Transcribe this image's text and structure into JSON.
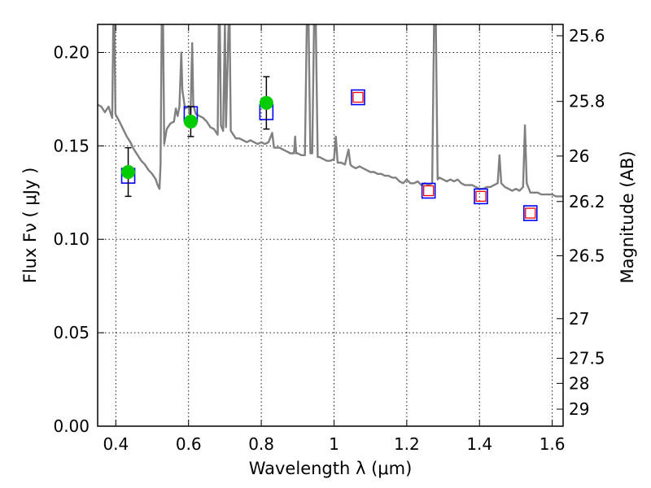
{
  "chart_data": {
    "type": "scatter",
    "xlabel": "Wavelength  λ (μm)",
    "ylabel_left": "Flux  F_ν  ( μJy )",
    "ylabel_right": "Magnitude (AB)",
    "xlim": [
      0.35,
      1.63
    ],
    "ylim": [
      0.0,
      0.215
    ],
    "grid": true,
    "x_ticks": [
      {
        "value": 0.4,
        "label": "0.4"
      },
      {
        "value": 0.6,
        "label": "0.6"
      },
      {
        "value": 0.8,
        "label": "0.8"
      },
      {
        "value": 1.0,
        "label": "1"
      },
      {
        "value": 1.2,
        "label": "1.2"
      },
      {
        "value": 1.4,
        "label": "1.4"
      },
      {
        "value": 1.6,
        "label": "1.6"
      }
    ],
    "y_ticks": [
      {
        "value": 0.0,
        "label": "0.00"
      },
      {
        "value": 0.05,
        "label": "0.05"
      },
      {
        "value": 0.1,
        "label": "0.10"
      },
      {
        "value": 0.15,
        "label": "0.15"
      },
      {
        "value": 0.2,
        "label": "0.20"
      }
    ],
    "right_ticks": [
      {
        "value": 25.6,
        "label": "25.6"
      },
      {
        "value": 25.8,
        "label": "25.8"
      },
      {
        "value": 26.0,
        "label": "26"
      },
      {
        "value": 26.2,
        "label": "26.2"
      },
      {
        "value": 26.5,
        "label": "26.5"
      },
      {
        "value": 27.0,
        "label": "27"
      },
      {
        "value": 27.5,
        "label": "27.5"
      },
      {
        "value": 28.0,
        "label": "28"
      },
      {
        "value": 29.0,
        "label": "29"
      }
    ],
    "series": [
      {
        "kind": "observed",
        "color": "#00cc00",
        "points": [
          {
            "x": 0.434,
            "y": 0.136,
            "yerr": 0.013
          },
          {
            "x": 0.606,
            "y": 0.163,
            "yerr": 0.008
          },
          {
            "x": 0.814,
            "y": 0.173,
            "yerr": 0.014
          }
        ]
      },
      {
        "kind": "model-filter",
        "color": "#0000ff",
        "points": [
          {
            "x": 0.434,
            "y": 0.134
          },
          {
            "x": 0.606,
            "y": 0.167
          },
          {
            "x": 0.814,
            "y": 0.168
          },
          {
            "x": 1.066,
            "y": 0.176
          },
          {
            "x": 1.26,
            "y": 0.126
          },
          {
            "x": 1.404,
            "y": 0.123
          },
          {
            "x": 1.54,
            "y": 0.114
          }
        ]
      },
      {
        "kind": "predicted",
        "color": "#ff0000",
        "points": [
          {
            "x": 1.066,
            "y": 0.176
          },
          {
            "x": 1.26,
            "y": 0.126
          },
          {
            "x": 1.404,
            "y": 0.123
          },
          {
            "x": 1.54,
            "y": 0.114
          }
        ]
      },
      {
        "kind": "template-spectrum",
        "color": "#808080",
        "points": [
          [
            0.35,
            0.172
          ],
          [
            0.36,
            0.171
          ],
          [
            0.37,
            0.168
          ],
          [
            0.38,
            0.171
          ],
          [
            0.385,
            0.168
          ],
          [
            0.39,
            0.165
          ],
          [
            0.393,
            0.215
          ],
          [
            0.396,
            0.215
          ],
          [
            0.399,
            0.167
          ],
          [
            0.41,
            0.163
          ],
          [
            0.42,
            0.159
          ],
          [
            0.43,
            0.155
          ],
          [
            0.44,
            0.152
          ],
          [
            0.45,
            0.148
          ],
          [
            0.46,
            0.145
          ],
          [
            0.47,
            0.142
          ],
          [
            0.48,
            0.14
          ],
          [
            0.49,
            0.137
          ],
          [
            0.5,
            0.135
          ],
          [
            0.51,
            0.132
          ],
          [
            0.515,
            0.129
          ],
          [
            0.52,
            0.127
          ],
          [
            0.523,
            0.14
          ],
          [
            0.526,
            0.215
          ],
          [
            0.53,
            0.215
          ],
          [
            0.533,
            0.151
          ],
          [
            0.54,
            0.159
          ],
          [
            0.55,
            0.162
          ],
          [
            0.56,
            0.163
          ],
          [
            0.565,
            0.17
          ],
          [
            0.57,
            0.166
          ],
          [
            0.575,
            0.171
          ],
          [
            0.58,
            0.2
          ],
          [
            0.583,
            0.18
          ],
          [
            0.59,
            0.17
          ],
          [
            0.6,
            0.171
          ],
          [
            0.605,
            0.165
          ],
          [
            0.61,
            0.205
          ],
          [
            0.613,
            0.172
          ],
          [
            0.62,
            0.167
          ],
          [
            0.63,
            0.166
          ],
          [
            0.64,
            0.165
          ],
          [
            0.65,
            0.163
          ],
          [
            0.66,
            0.16
          ],
          [
            0.67,
            0.159
          ],
          [
            0.68,
            0.156
          ],
          [
            0.683,
            0.215
          ],
          [
            0.686,
            0.215
          ],
          [
            0.689,
            0.161
          ],
          [
            0.695,
            0.158
          ],
          [
            0.7,
            0.215
          ],
          [
            0.703,
            0.16
          ],
          [
            0.71,
            0.215
          ],
          [
            0.713,
            0.215
          ],
          [
            0.716,
            0.158
          ],
          [
            0.72,
            0.157
          ],
          [
            0.73,
            0.154
          ],
          [
            0.74,
            0.154
          ],
          [
            0.75,
            0.153
          ],
          [
            0.76,
            0.152
          ],
          [
            0.77,
            0.153
          ],
          [
            0.78,
            0.152
          ],
          [
            0.79,
            0.151
          ],
          [
            0.8,
            0.152
          ],
          [
            0.81,
            0.151
          ],
          [
            0.82,
            0.152
          ],
          [
            0.83,
            0.157
          ],
          [
            0.835,
            0.149
          ],
          [
            0.84,
            0.149
          ],
          [
            0.85,
            0.149
          ],
          [
            0.86,
            0.148
          ],
          [
            0.87,
            0.147
          ],
          [
            0.88,
            0.146
          ],
          [
            0.89,
            0.146
          ],
          [
            0.893,
            0.155
          ],
          [
            0.896,
            0.146
          ],
          [
            0.9,
            0.146
          ],
          [
            0.91,
            0.145
          ],
          [
            0.92,
            0.145
          ],
          [
            0.925,
            0.215
          ],
          [
            0.93,
            0.215
          ],
          [
            0.935,
            0.146
          ],
          [
            0.94,
            0.146
          ],
          [
            0.945,
            0.215
          ],
          [
            0.95,
            0.215
          ],
          [
            0.955,
            0.144
          ],
          [
            0.96,
            0.144
          ],
          [
            0.97,
            0.143
          ],
          [
            0.98,
            0.142
          ],
          [
            0.99,
            0.142
          ],
          [
            1.0,
            0.143
          ],
          [
            1.005,
            0.155
          ],
          [
            1.01,
            0.141
          ],
          [
            1.02,
            0.141
          ],
          [
            1.03,
            0.14
          ],
          [
            1.04,
            0.148
          ],
          [
            1.045,
            0.14
          ],
          [
            1.05,
            0.139
          ],
          [
            1.06,
            0.138
          ],
          [
            1.07,
            0.139
          ],
          [
            1.08,
            0.138
          ],
          [
            1.09,
            0.137
          ],
          [
            1.1,
            0.136
          ],
          [
            1.11,
            0.136
          ],
          [
            1.12,
            0.135
          ],
          [
            1.13,
            0.135
          ],
          [
            1.14,
            0.134
          ],
          [
            1.15,
            0.134
          ],
          [
            1.16,
            0.133
          ],
          [
            1.17,
            0.133
          ],
          [
            1.18,
            0.131
          ],
          [
            1.19,
            0.13
          ],
          [
            1.2,
            0.132
          ],
          [
            1.21,
            0.13
          ],
          [
            1.22,
            0.13
          ],
          [
            1.23,
            0.131
          ],
          [
            1.24,
            0.129
          ],
          [
            1.25,
            0.13
          ],
          [
            1.26,
            0.129
          ],
          [
            1.27,
            0.13
          ],
          [
            1.275,
            0.215
          ],
          [
            1.28,
            0.215
          ],
          [
            1.285,
            0.132
          ],
          [
            1.29,
            0.133
          ],
          [
            1.3,
            0.132
          ],
          [
            1.31,
            0.131
          ],
          [
            1.32,
            0.132
          ],
          [
            1.33,
            0.131
          ],
          [
            1.34,
            0.132
          ],
          [
            1.35,
            0.13
          ],
          [
            1.36,
            0.129
          ],
          [
            1.37,
            0.129
          ],
          [
            1.38,
            0.129
          ],
          [
            1.39,
            0.128
          ],
          [
            1.4,
            0.127
          ],
          [
            1.41,
            0.127
          ],
          [
            1.42,
            0.128
          ],
          [
            1.43,
            0.128
          ],
          [
            1.44,
            0.129
          ],
          [
            1.45,
            0.13
          ],
          [
            1.455,
            0.145
          ],
          [
            1.46,
            0.13
          ],
          [
            1.47,
            0.128
          ],
          [
            1.48,
            0.127
          ],
          [
            1.49,
            0.126
          ],
          [
            1.5,
            0.127
          ],
          [
            1.51,
            0.126
          ],
          [
            1.52,
            0.128
          ],
          [
            1.525,
            0.161
          ],
          [
            1.53,
            0.13
          ],
          [
            1.54,
            0.125
          ],
          [
            1.55,
            0.125
          ],
          [
            1.56,
            0.125
          ],
          [
            1.57,
            0.124
          ],
          [
            1.58,
            0.124
          ],
          [
            1.59,
            0.124
          ],
          [
            1.6,
            0.124
          ],
          [
            1.61,
            0.123
          ],
          [
            1.62,
            0.123
          ],
          [
            1.63,
            0.123
          ]
        ]
      }
    ]
  }
}
